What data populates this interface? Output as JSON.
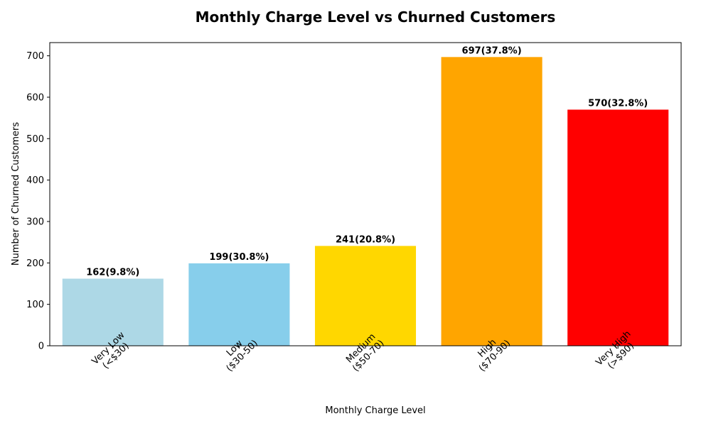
{
  "chart_data": {
    "type": "bar",
    "title": "Monthly Charge Level vs Churned Customers",
    "xlabel": "Monthly Charge Level",
    "ylabel": "Number of Churned Customers",
    "categories": [
      [
        "Very Low",
        "(<$30)"
      ],
      [
        "Low",
        "($30-50)"
      ],
      [
        "Medium",
        "($50-70)"
      ],
      [
        "High",
        "($70-90)"
      ],
      [
        "Very High",
        "(>$90)"
      ]
    ],
    "values": [
      162,
      199,
      241,
      697,
      570
    ],
    "data_labels": [
      "162(9.8%)",
      "199(30.8%)",
      "241(20.8%)",
      "697(37.8%)",
      "570(32.8%)"
    ],
    "colors": [
      "#add8e6",
      "#87ceeb",
      "#ffd700",
      "#ffa500",
      "#ff0000"
    ],
    "ylim": [
      0,
      731.85
    ],
    "yticks": [
      0,
      100,
      200,
      300,
      400,
      500,
      600,
      700
    ],
    "xtick_rotation_deg": 45,
    "grid": false,
    "legend": "none"
  }
}
